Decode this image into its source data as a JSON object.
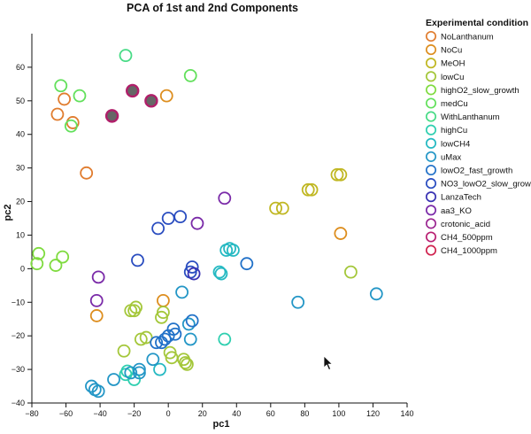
{
  "chart_data": {
    "type": "scatter",
    "title": "PCA of 1st and 2nd Components",
    "xlabel": "pc1",
    "ylabel": "pc2",
    "xlim": [
      -80,
      140
    ],
    "ylim": [
      -40,
      70
    ],
    "xticks": [
      "−80",
      "−60",
      "−40",
      "−20",
      "0",
      "20",
      "40",
      "60",
      "80",
      "100",
      "120",
      "140"
    ],
    "yticks": [
      "−40",
      "−30",
      "−20",
      "−10",
      "0",
      "10",
      "20",
      "30",
      "40",
      "50",
      "60"
    ],
    "grid": false,
    "legend_position": "top-right",
    "legend_title": "Experimental condition",
    "series": [
      {
        "name": "NoLanthanum",
        "color": "#e07c2e",
        "filled": false,
        "points": [
          [
            -48,
            28.5
          ],
          [
            -65,
            46
          ],
          [
            -56,
            43.5
          ],
          [
            -61,
            50.5
          ]
        ]
      },
      {
        "name": "NoCu",
        "color": "#dd8e1f",
        "filled": false,
        "points": [
          [
            -42,
            -14
          ],
          [
            -3,
            -9.5
          ],
          [
            -1,
            51.5
          ],
          [
            101,
            10.5
          ]
        ]
      },
      {
        "name": "MeOH",
        "color": "#c0b722",
        "filled": false,
        "points": [
          [
            63,
            18
          ],
          [
            67,
            18
          ],
          [
            82,
            23.5
          ],
          [
            84,
            23.5
          ],
          [
            99,
            28
          ],
          [
            101,
            28
          ]
        ]
      },
      {
        "name": "lowCu",
        "color": "#a4c73a",
        "filled": false,
        "points": [
          [
            107,
            -1
          ],
          [
            -22,
            -12.5
          ],
          [
            -20,
            -12.5
          ],
          [
            -19,
            -11.5
          ],
          [
            -4,
            -14.5
          ],
          [
            -3,
            -13
          ],
          [
            -16,
            -21
          ],
          [
            -13,
            -20.5
          ],
          [
            -26,
            -24.5
          ],
          [
            1,
            -25
          ],
          [
            2,
            -26.5
          ],
          [
            9,
            -27
          ],
          [
            10,
            -28
          ],
          [
            11,
            -28.5
          ]
        ]
      },
      {
        "name": "highO2_slow_growth",
        "color": "#7fdb3f",
        "filled": false,
        "points": [
          [
            -77,
            1.5
          ],
          [
            -76,
            4.5
          ],
          [
            -66,
            1
          ],
          [
            -62,
            3.5
          ]
        ]
      },
      {
        "name": "medCu",
        "color": "#62e05b",
        "filled": false,
        "points": [
          [
            -63,
            54.5
          ],
          [
            -52,
            51.5
          ],
          [
            -57,
            42.5
          ],
          [
            13,
            57.5
          ]
        ]
      },
      {
        "name": "WithLanthanum",
        "color": "#48db86",
        "filled": false,
        "points": [
          [
            -25,
            63.5
          ]
        ]
      },
      {
        "name": "highCu",
        "color": "#2fcfb0",
        "filled": false,
        "points": [
          [
            33,
            -21
          ],
          [
            -24,
            -30.5
          ],
          [
            -25,
            -31.5
          ],
          [
            -20,
            -33
          ]
        ]
      },
      {
        "name": "lowCH4",
        "color": "#25b9c2",
        "filled": false,
        "points": [
          [
            30,
            -1
          ],
          [
            31,
            -1.5
          ],
          [
            34,
            5.5
          ],
          [
            36,
            6
          ],
          [
            38,
            5.5
          ],
          [
            -5,
            -30
          ]
        ]
      },
      {
        "name": "uMax",
        "color": "#2396c6",
        "filled": false,
        "points": [
          [
            122,
            -7.5
          ],
          [
            76,
            -10
          ],
          [
            12,
            -16.5
          ],
          [
            13,
            -21
          ],
          [
            -9,
            -27
          ],
          [
            -17,
            -31
          ],
          [
            -17,
            -30
          ],
          [
            -22,
            -31
          ],
          [
            -32,
            -33
          ],
          [
            -45,
            -35
          ],
          [
            -43,
            -36
          ],
          [
            -41,
            -36.5
          ],
          [
            8,
            -7
          ]
        ]
      },
      {
        "name": "lowO2_fast_growth",
        "color": "#2171c8",
        "filled": false,
        "points": [
          [
            46,
            1.5
          ],
          [
            14,
            -15.5
          ],
          [
            3,
            -18
          ],
          [
            4,
            -19.5
          ],
          [
            -2,
            -21
          ],
          [
            0,
            -20
          ],
          [
            -7,
            -22
          ],
          [
            -4,
            -22
          ]
        ]
      },
      {
        "name": "NO3_lowO2_slow_growth",
        "color": "#2a4dc0",
        "filled": false,
        "points": [
          [
            0,
            15
          ],
          [
            7,
            15.5
          ],
          [
            -6,
            12
          ],
          [
            -18,
            2.5
          ],
          [
            13,
            -1
          ],
          [
            14,
            0.5
          ]
        ]
      },
      {
        "name": "LanzaTech",
        "color": "#3a33b3",
        "filled": false,
        "points": [
          [
            15,
            -1.5
          ]
        ]
      },
      {
        "name": "aa3_KO",
        "color": "#7a2aa8",
        "filled": false,
        "points": [
          [
            33,
            21
          ],
          [
            17,
            13.5
          ],
          [
            -41,
            -2.5
          ],
          [
            -42,
            -9.5
          ]
        ]
      },
      {
        "name": "crotonic_acid",
        "color": "#9a2590",
        "filled": false,
        "points": []
      },
      {
        "name": "CH4_500ppm",
        "color": "#b81f72",
        "filled": false,
        "points": []
      },
      {
        "name": "CH4_1000ppm",
        "color": "#d0234f",
        "filled": false,
        "points": []
      },
      {
        "name": "",
        "color": "#b01f6a",
        "filled": true,
        "points": [
          [
            -21,
            53
          ],
          [
            -10,
            50
          ],
          [
            -33,
            45.5
          ]
        ]
      }
    ]
  }
}
